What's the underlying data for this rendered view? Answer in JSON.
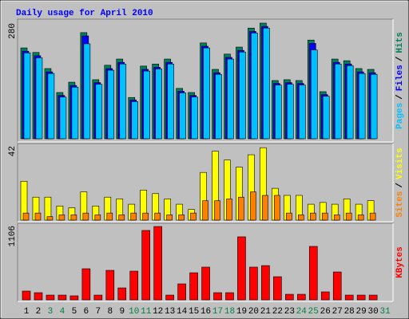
{
  "chart_data": [
    {
      "type": "bar",
      "title": "Daily usage for April 2010",
      "ylim": [
        0,
        280
      ],
      "yticks": [
        280
      ],
      "grid": false,
      "legend_separator": "/",
      "series": [
        {
          "name": "Hits",
          "color": "#00805c",
          "values": [
            220,
            209,
            170,
            112,
            137,
            257,
            143,
            178,
            193,
            100,
            176,
            181,
            193,
            122,
            112,
            232,
            168,
            205,
            222,
            268,
            280,
            141,
            143,
            141,
            239,
            114,
            193,
            189,
            170,
            168,
            null
          ]
        },
        {
          "name": "Files",
          "color": "#0000ff",
          "values": [
            212,
            201,
            162,
            105,
            129,
            249,
            136,
            170,
            185,
            94,
            168,
            173,
            185,
            115,
            105,
            224,
            160,
            197,
            214,
            260,
            272,
            134,
            136,
            134,
            231,
            107,
            185,
            181,
            162,
            160,
            null
          ]
        },
        {
          "name": "Pages",
          "color": "#00c0ff",
          "values": [
            208,
            196,
            158,
            101,
            125,
            230,
            132,
            166,
            181,
            90,
            164,
            169,
            181,
            111,
            101,
            220,
            156,
            193,
            210,
            256,
            268,
            130,
            132,
            130,
            215,
            103,
            181,
            177,
            158,
            156,
            null
          ]
        }
      ]
    },
    {
      "type": "bar",
      "ylim": [
        0,
        42
      ],
      "yticks": [
        42
      ],
      "grid": false,
      "legend_separator": "/",
      "series": [
        {
          "name": "Visits",
          "color": "#ffff00",
          "values": [
            22,
            13,
            13,
            8,
            7,
            16,
            8,
            13,
            12,
            9,
            17,
            15,
            12,
            9,
            6,
            27,
            39,
            34,
            30,
            37,
            41,
            18,
            14,
            14,
            9,
            10,
            9,
            12,
            9,
            11,
            null
          ]
        },
        {
          "name": "Sites",
          "color": "#ff8000",
          "values": [
            4,
            4,
            2,
            3,
            3,
            4,
            3,
            4,
            3,
            4,
            4,
            4,
            3,
            3,
            4,
            11,
            11,
            12,
            13,
            16,
            14,
            14,
            4,
            3,
            4,
            4,
            3,
            4,
            3,
            4,
            null
          ]
        }
      ]
    },
    {
      "type": "bar",
      "ylim": [
        0,
        1106
      ],
      "yticks": [
        1106
      ],
      "grid": false,
      "categories": [
        "1",
        "2",
        "3",
        "4",
        "5",
        "6",
        "7",
        "8",
        "9",
        "10",
        "11",
        "12",
        "13",
        "14",
        "15",
        "16",
        "17",
        "18",
        "19",
        "20",
        "21",
        "22",
        "23",
        "24",
        "25",
        "26",
        "27",
        "28",
        "29",
        "30",
        "31"
      ],
      "category_colors": [
        "#000000",
        "#000000",
        "#008040",
        "#008040",
        "#000000",
        "#000000",
        "#000000",
        "#000000",
        "#000000",
        "#008040",
        "#008040",
        "#000000",
        "#000000",
        "#000000",
        "#000000",
        "#000000",
        "#008040",
        "#008040",
        "#000000",
        "#000000",
        "#000000",
        "#000000",
        "#000000",
        "#008040",
        "#008040",
        "#000000",
        "#000000",
        "#000000",
        "#000000",
        "#000000",
        "#008040"
      ],
      "series": [
        {
          "name": "KBytes",
          "color": "#ff0000",
          "values": [
            131,
            107,
            71,
            71,
            60,
            464,
            71,
            440,
            178,
            428,
            1035,
            1094,
            71,
            238,
            404,
            488,
            107,
            107,
            940,
            488,
            511,
            345,
            83,
            83,
            797,
            119,
            416,
            71,
            71,
            71,
            null
          ]
        }
      ]
    }
  ]
}
